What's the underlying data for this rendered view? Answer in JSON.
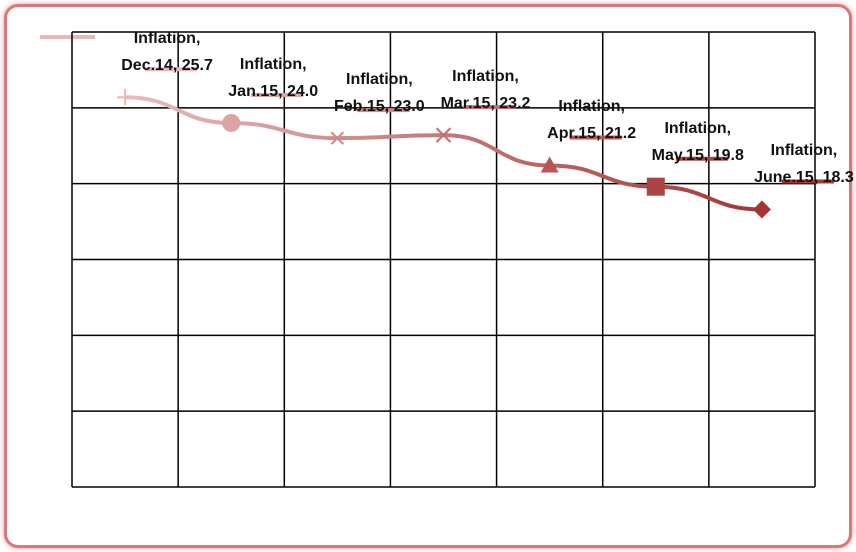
{
  "chart_data": {
    "type": "line",
    "categories": [
      "Dec.14",
      "Jan.15",
      "Feb.15",
      "Mar.15",
      "Apr.15",
      "May.15",
      "June.15"
    ],
    "series": [
      {
        "name": "Inflation",
        "color": "#a83a3a",
        "values": [
          25.7,
          24.0,
          23.0,
          23.2,
          21.2,
          19.8,
          18.3
        ],
        "value_labels": [
          "Inflation, Dec.14, 25.7",
          "Inflation, Jan.15, 24.0",
          "Inflation, Feb.15, 23.0",
          "Inflation, Mar.15, 23.2",
          "Inflation, Apr.15, 21.2",
          "Inflation, May.15, 19.8",
          "Inflation, June.15, 18.3"
        ],
        "point_colors": [
          "#e6b8b8",
          "#dca4a4",
          "#d08888",
          "#c46e6e",
          "#b85656",
          "#ad4444",
          "#a33535"
        ],
        "markers": [
          "plus",
          "circle",
          "asterisk",
          "x",
          "triangle",
          "square",
          "diamond"
        ]
      }
    ],
    "ylim": [
      0,
      30
    ],
    "yticks": [
      0,
      5,
      10,
      15,
      20,
      25,
      30
    ],
    "grid": true
  }
}
